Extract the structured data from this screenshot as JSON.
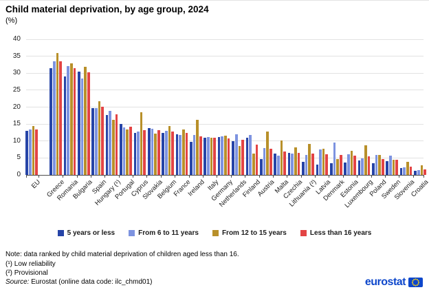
{
  "header": {
    "title": "Child material deprivation, by age group, 2024",
    "subtitle": "(%)"
  },
  "chart_data": {
    "type": "bar",
    "title": "Child material deprivation, by age group, 2024",
    "ylabel": "(%)",
    "ylim": [
      0,
      40
    ],
    "yticks": [
      0,
      5,
      10,
      15,
      20,
      25,
      30,
      35,
      40
    ],
    "grid": true,
    "legend_position": "bottom",
    "categories": [
      "EU",
      "Greece",
      "Romania",
      "Bulgaria",
      "Spain",
      "Hungary (¹)",
      "Portugal",
      "Cyprus",
      "Slovakia",
      "Belgium",
      "France",
      "Ireland",
      "Italy",
      "Germany",
      "Netherlands",
      "Finland",
      "Austria",
      "Malta",
      "Czechia",
      "Lithuania (²)",
      "Latvia",
      "Denmark",
      "Estonia",
      "Luxembourg",
      "Poland",
      "Sweden",
      "Slovenia",
      "Croatia"
    ],
    "series": [
      {
        "name": "5 years or less",
        "color": "#2644A7",
        "values": [
          13.0,
          31.5,
          29.0,
          30.4,
          19.8,
          17.7,
          15.0,
          12.4,
          13.8,
          12.4,
          12.0,
          9.8,
          11.0,
          11.2,
          10.0,
          11.0,
          4.6,
          6.3,
          6.4,
          3.8,
          3.0,
          3.5,
          3.6,
          4.2,
          3.5,
          4.1,
          2.0,
          1.2
        ]
      },
      {
        "name": "From 6 to 11 years",
        "color": "#7D93E0",
        "values": [
          13.4,
          33.5,
          32.0,
          28.5,
          19.8,
          18.9,
          14.0,
          12.8,
          13.6,
          13.0,
          11.8,
          11.8,
          11.1,
          11.4,
          12.0,
          11.8,
          7.9,
          5.7,
          6.2,
          5.8,
          7.5,
          9.6,
          6.1,
          4.8,
          5.9,
          5.7,
          2.2,
          1.5
        ]
      },
      {
        "name": "From 12 to 15 years",
        "color": "#B8902A",
        "values": [
          14.4,
          36.0,
          32.8,
          31.8,
          21.8,
          16.3,
          13.4,
          18.5,
          12.2,
          14.4,
          13.4,
          16.3,
          11.0,
          11.6,
          8.6,
          6.2,
          12.8,
          10.2,
          8.2,
          9.1,
          7.8,
          4.6,
          7.1,
          8.7,
          5.8,
          4.5,
          3.8,
          2.9
        ]
      },
      {
        "name": "Less than 16 years",
        "color": "#E34444",
        "values": [
          13.5,
          33.5,
          31.5,
          30.2,
          20.2,
          17.9,
          14.3,
          13.3,
          13.1,
          12.8,
          12.4,
          11.4,
          10.9,
          10.8,
          10.4,
          8.9,
          7.8,
          6.9,
          6.5,
          6.2,
          6.0,
          5.8,
          5.6,
          5.4,
          4.7,
          4.5,
          2.4,
          1.7
        ]
      }
    ]
  },
  "notes": {
    "ranking": "Note: data ranked by child material deprivation of children aged less than 16.",
    "footnote1": "(¹) Low reliability",
    "footnote2": "(²) Provisional"
  },
  "source": {
    "label": "Source:",
    "text": "Eurostat (online data code: ilc_chmd01)"
  },
  "logo": {
    "text": "eurostat",
    "brand_color": "#0E47CB",
    "star_color": "#FFD617"
  }
}
